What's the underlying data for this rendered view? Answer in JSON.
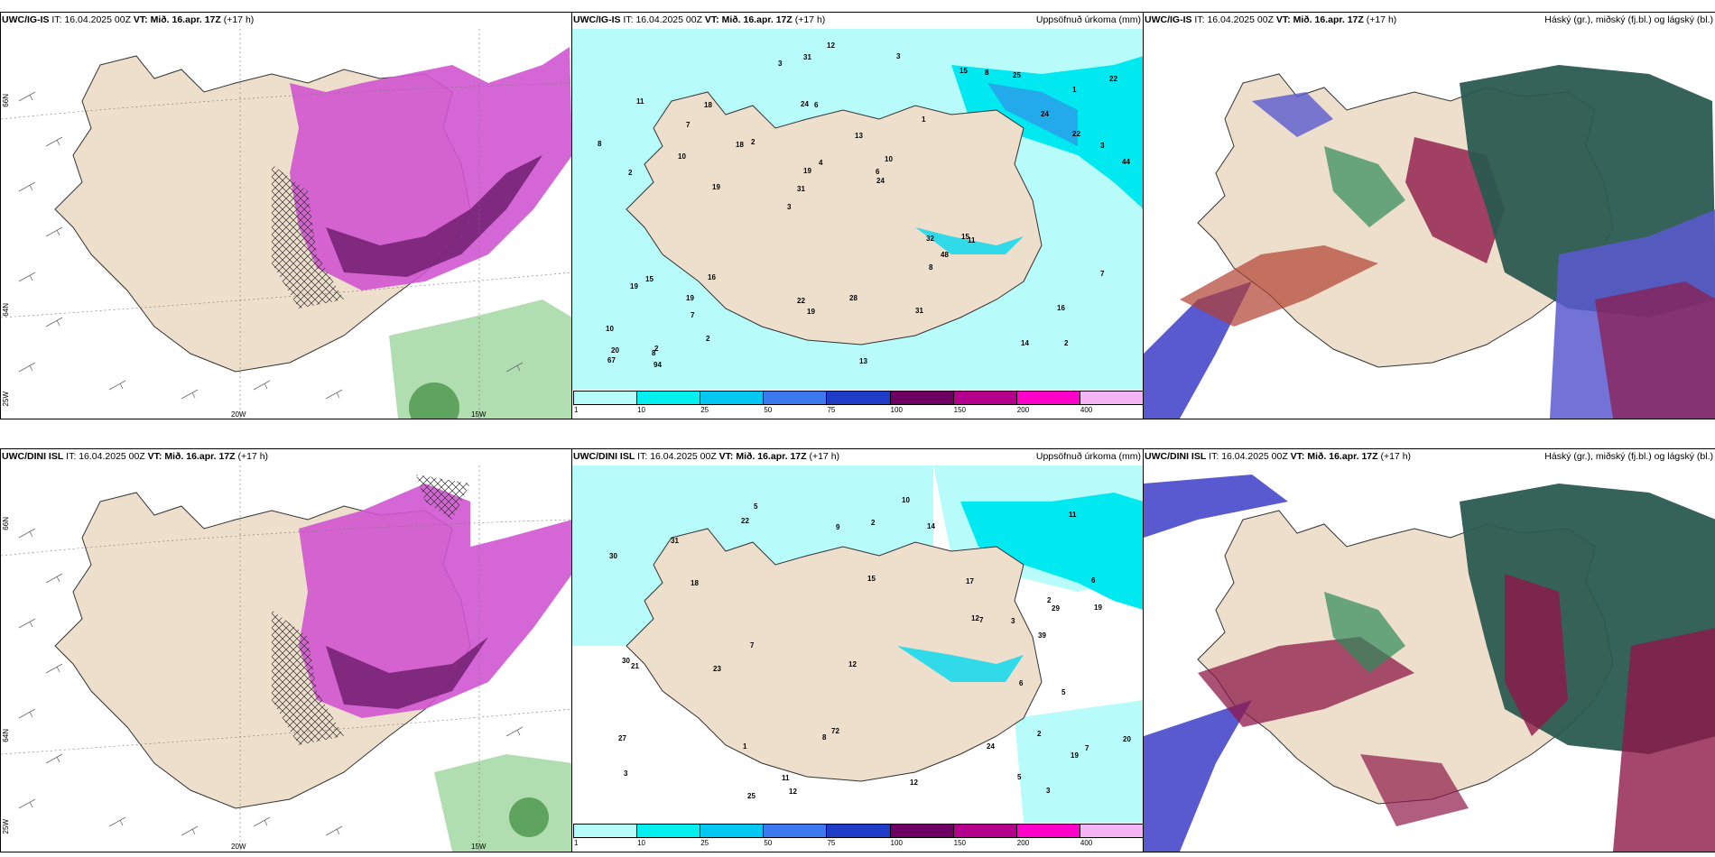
{
  "panels": [
    {
      "model": "UWC/IG-IS",
      "it_label": "IT:",
      "it": "16.04.2025 00Z",
      "vt_label": "VT:",
      "vt": "Mið. 16.apr. 17Z",
      "lead": "(+17 h)",
      "right": ""
    },
    {
      "model": "UWC/IG-IS",
      "it_label": "IT:",
      "it": "16.04.2025 00Z",
      "vt_label": "VT:",
      "vt": "Mið. 16.apr. 17Z",
      "lead": "(+17 h)",
      "right": "Uppsöfnuð úrkoma (mm)"
    },
    {
      "model": "UWC/IG-IS",
      "it_label": "IT:",
      "it": "16.04.2025 00Z",
      "vt_label": "VT:",
      "vt": "Mið. 16.apr. 17Z",
      "lead": "(+17 h)",
      "right": "Háský (gr.), miðský (fj.bl.) og lágský (bl.)"
    },
    {
      "model": "UWC/DINI ISL",
      "it_label": "IT:",
      "it": "16.04.2025 00Z",
      "vt_label": "VT:",
      "vt": "Mið. 16.apr. 17Z",
      "lead": "(+17 h)",
      "right": ""
    },
    {
      "model": "UWC/DINI ISL",
      "it_label": "IT:",
      "it": "16.04.2025 00Z",
      "vt_label": "VT:",
      "vt": "Mið. 16.apr. 17Z",
      "lead": "(+17 h)",
      "right": "Uppsöfnuð úrkoma (mm)"
    },
    {
      "model": "UWC/DINI ISL",
      "it_label": "IT:",
      "it": "16.04.2025 00Z",
      "vt_label": "VT:",
      "vt": "Mið. 16.apr. 17Z",
      "lead": "(+17 h)",
      "right": "Háský (gr.), miðský (fj.bl.) og lágský (bl.)"
    }
  ],
  "axis_labels": {
    "lat_66": "66N",
    "lat_64": "64N",
    "lon_25": "25W",
    "lon_20": "20W",
    "lon_15": "15W"
  },
  "legend": {
    "ticks": [
      "1",
      "10",
      "25",
      "50",
      "75",
      "100",
      "150",
      "200",
      "400"
    ],
    "colors": [
      "#b8fbfb",
      "#00f0f0",
      "#00c8f0",
      "#3c78f0",
      "#1e3cc8",
      "#6e0064",
      "#b4008c",
      "#ff00c8",
      "#f5b4f5"
    ]
  },
  "precip_values_top": [
    "2",
    "2",
    "1",
    "3",
    "1",
    "2",
    "24",
    "13",
    "15",
    "2",
    "10",
    "7",
    "6",
    "10",
    "11",
    "11",
    "31",
    "44",
    "32",
    "22",
    "31",
    "22",
    "19",
    "18",
    "15",
    "16",
    "14",
    "16",
    "15",
    "13",
    "18",
    "10",
    "8",
    "2",
    "3",
    "6",
    "20",
    "19",
    "24",
    "19",
    "24",
    "22",
    "48",
    "31",
    "19",
    "94",
    "67",
    "28",
    "25",
    "12",
    "19",
    "8",
    "7",
    "8",
    "8",
    "3",
    "3",
    "4",
    "7"
  ],
  "precip_values_bottom": [
    "2",
    "6",
    "7",
    "15",
    "3",
    "5",
    "2",
    "1",
    "11",
    "18",
    "19",
    "30",
    "39",
    "12",
    "27",
    "31",
    "19",
    "22",
    "72",
    "29",
    "30",
    "21",
    "12",
    "12",
    "11",
    "8",
    "10",
    "14",
    "17",
    "20",
    "23",
    "24",
    "25",
    "12",
    "5",
    "5",
    "7",
    "9",
    "3",
    "7",
    "6",
    "3",
    "2"
  ],
  "colors": {
    "land": "#eedfcc",
    "wind_fill": "#cc44cc",
    "wind_dark": "#5a1060",
    "precip_light": "#b8fbfb",
    "precip_cyan": "#00f0f0",
    "cloud_high": "#2a5a50",
    "cloud_mid": "#8e1848",
    "cloud_low": "#5a5ad0"
  }
}
